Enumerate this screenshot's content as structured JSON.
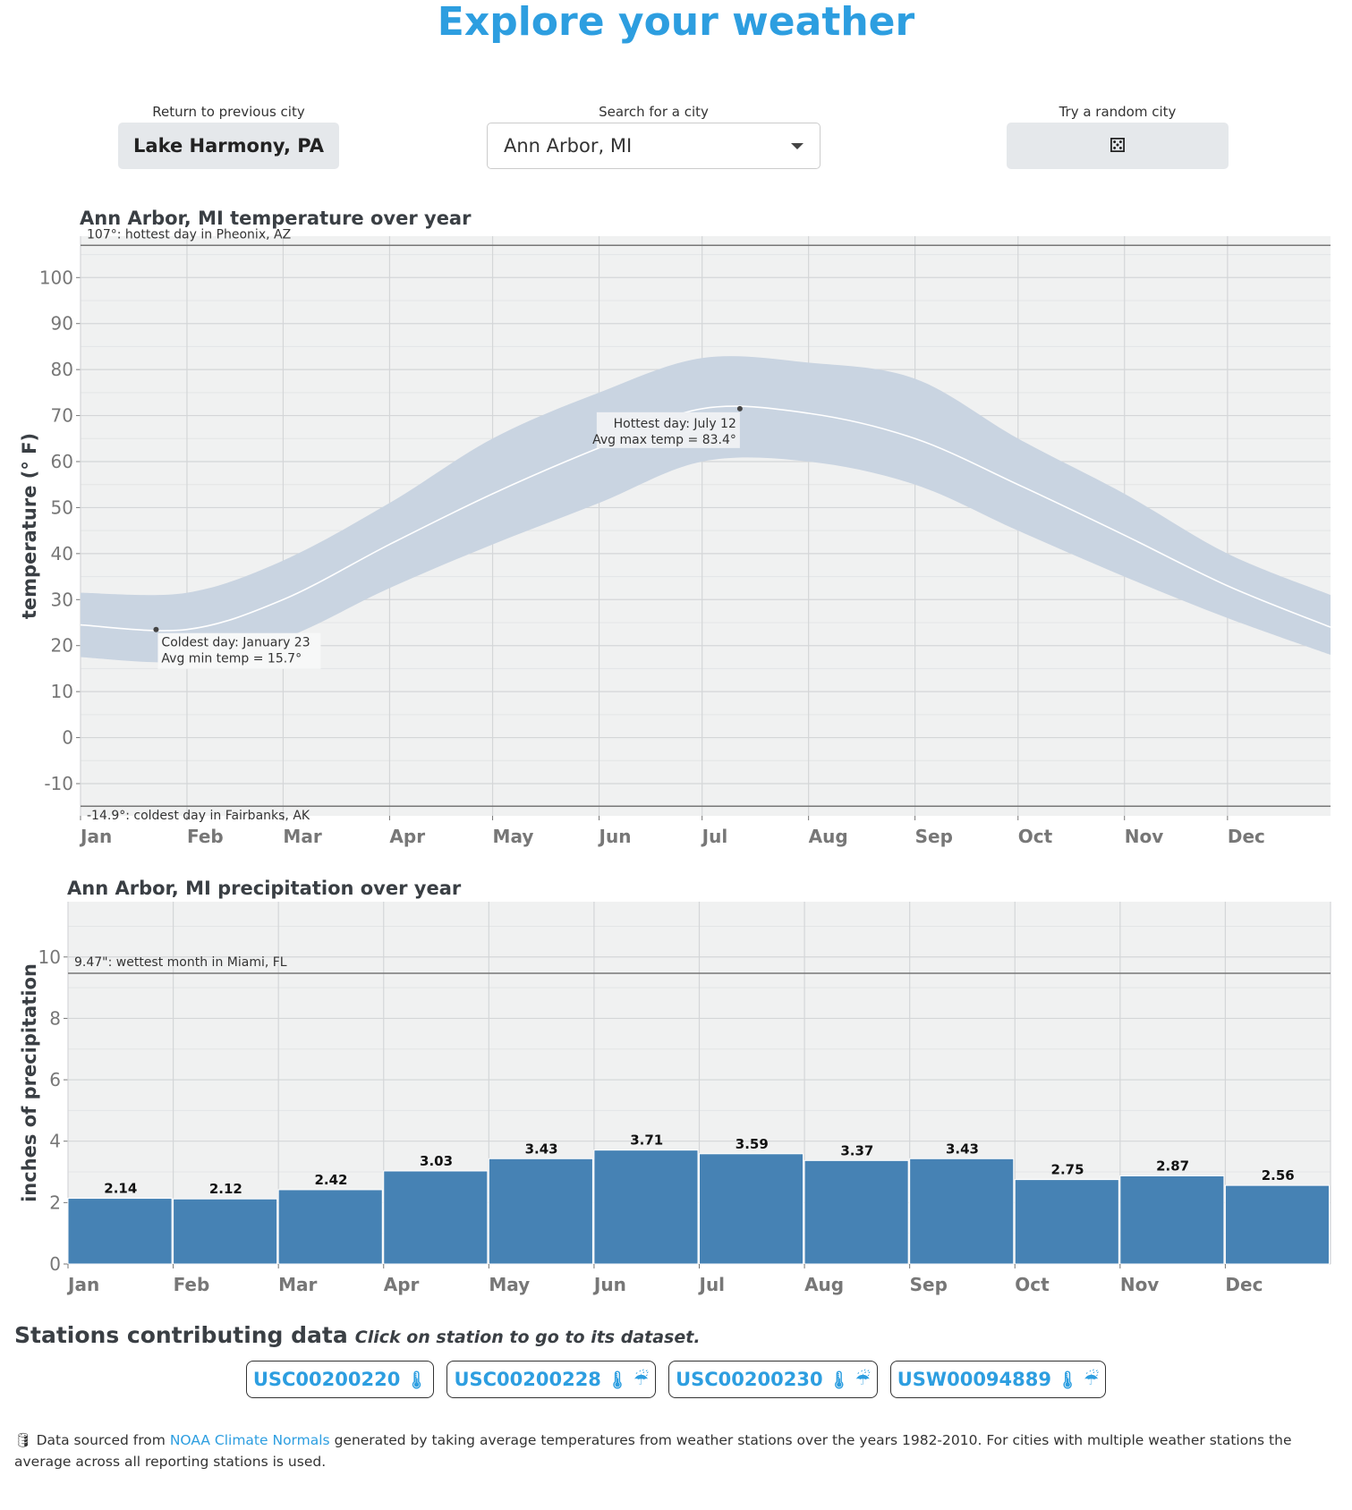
{
  "page": {
    "title": "Explore your weather"
  },
  "controls": {
    "previous": {
      "label": "Return to previous city",
      "value": "Lake Harmony, PA"
    },
    "search": {
      "label": "Search for a city",
      "value": "Ann Arbor, MI"
    },
    "random": {
      "label": "Try a random city",
      "icon": "dice-icon"
    }
  },
  "chart_data": [
    {
      "type": "area",
      "title": "Ann Arbor, MI temperature over year",
      "ylabel": "temperature (° F)",
      "xlabel": "",
      "ylim": [
        -17,
        109
      ],
      "x_ticks": [
        "Jan",
        "Feb",
        "Mar",
        "Apr",
        "May",
        "Jun",
        "Jul",
        "Aug",
        "Sep",
        "Oct",
        "Nov",
        "Dec"
      ],
      "y_ticks": [
        100,
        90,
        80,
        70,
        60,
        50,
        40,
        30,
        20,
        10,
        0,
        -10
      ],
      "x_day": [
        1,
        32,
        60,
        91,
        121,
        152,
        182,
        213,
        244,
        274,
        305,
        335,
        365
      ],
      "avg": [
        24.5,
        23.5,
        30,
        42,
        53,
        63,
        71.5,
        70.5,
        65,
        55,
        44,
        33,
        24
      ],
      "max": [
        31.5,
        31.5,
        38.5,
        51,
        65,
        75,
        82.5,
        81.5,
        78,
        65,
        53,
        40,
        31
      ],
      "min": [
        17.5,
        16.5,
        21.5,
        32.5,
        42,
        51,
        60,
        60,
        55,
        45,
        35,
        26,
        18
      ],
      "reference_lines": [
        {
          "value": 107,
          "label": "107°: hottest day in Pheonix, AZ"
        },
        {
          "value": -14.9,
          "label": "-14.9°: coldest day in Fairbanks, AK"
        }
      ],
      "annotations": [
        {
          "day": 23,
          "value": 23.5,
          "line1": "Coldest day: January 23",
          "line2": "Avg min temp = 15.7°"
        },
        {
          "day": 193,
          "value": 71.5,
          "line1": "Hottest day: July 12",
          "line2": "Avg max temp = 83.4°"
        }
      ],
      "colors": {
        "band": "#c9d4e1",
        "line": "#ffffff",
        "panel": "#f0f1f1"
      },
      "grid": true
    },
    {
      "type": "bar",
      "title": "Ann Arbor, MI precipitation over year",
      "ylabel": "inches of precipitation",
      "xlabel": "",
      "ylim": [
        0,
        11.8
      ],
      "y_ticks": [
        10,
        8,
        6,
        4,
        2,
        0
      ],
      "categories": [
        "Jan",
        "Feb",
        "Mar",
        "Apr",
        "May",
        "Jun",
        "Jul",
        "Aug",
        "Sep",
        "Oct",
        "Nov",
        "Dec"
      ],
      "values": [
        2.14,
        2.12,
        2.42,
        3.03,
        3.43,
        3.71,
        3.59,
        3.37,
        3.43,
        2.75,
        2.87,
        2.56
      ],
      "value_labels": [
        "2.14",
        "2.12",
        "2.42",
        "3.03",
        "3.43",
        "3.71",
        "3.59",
        "3.37",
        "3.43",
        "2.75",
        "2.87",
        "2.56"
      ],
      "reference_lines": [
        {
          "value": 9.47,
          "label": "9.47\": wettest month in Miami, FL"
        }
      ],
      "colors": {
        "bar": "#4682b4",
        "panel": "#f0f1f1"
      },
      "grid": true
    }
  ],
  "stations": {
    "heading": "Stations contributing data",
    "hint": "Click on station to go to its dataset.",
    "items": [
      {
        "id": "USC00200220",
        "icons": [
          "thermometer-icon"
        ]
      },
      {
        "id": "USC00200228",
        "icons": [
          "thermometer-icon",
          "rain-cloud-icon"
        ]
      },
      {
        "id": "USC00200230",
        "icons": [
          "thermometer-icon",
          "rain-cloud-icon"
        ]
      },
      {
        "id": "USW00094889",
        "icons": [
          "thermometer-icon",
          "rain-cloud-icon"
        ]
      }
    ]
  },
  "footer": {
    "icon": "database-icon",
    "prefix": "Data sourced from ",
    "link": "NOAA Climate Normals",
    "suffix": " generated by taking average temperatures from weather stations over the years 1982-2010. For cities with multiple weather stations the average across all reporting stations is used."
  }
}
